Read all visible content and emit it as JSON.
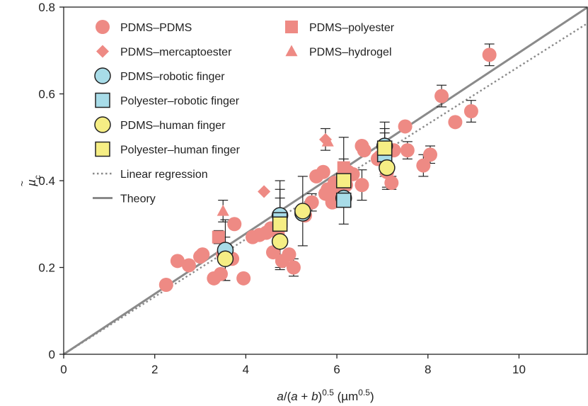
{
  "chart_data": {
    "type": "scatter",
    "xlabel_parts": [
      "a",
      "/(",
      "a",
      " + ",
      "b",
      ")",
      "0.5",
      " (µm",
      "0.5",
      ")"
    ],
    "ylabel_parts": [
      "µ",
      "c"
    ],
    "xlim": [
      0,
      11.5
    ],
    "ylim": [
      0,
      0.8
    ],
    "xticks": [
      "0",
      "2",
      "4",
      "6",
      "8",
      "10"
    ],
    "yticks": [
      "0",
      "0.2",
      "0.4",
      "0.6",
      "0.8"
    ],
    "xtick_values": [
      0,
      2,
      4,
      6,
      8,
      10
    ],
    "ytick_values": [
      0,
      0.2,
      0.4,
      0.6,
      0.8
    ],
    "colors": {
      "red": "#ee8a84",
      "blue": "#a8dce8",
      "yellow": "#f6ee84",
      "line": "#8a8a8a"
    },
    "series": [
      {
        "name": "PDMS–PDMS",
        "marker": "circle",
        "color": "red",
        "points": [
          [
            2.25,
            0.16
          ],
          [
            2.5,
            0.215
          ],
          [
            2.75,
            0.205
          ],
          [
            3.0,
            0.225
          ],
          [
            3.05,
            0.23
          ],
          [
            3.3,
            0.175
          ],
          [
            3.45,
            0.185
          ],
          [
            3.5,
            0.23
          ],
          [
            3.55,
            0.24
          ],
          [
            3.7,
            0.22
          ],
          [
            3.75,
            0.3
          ],
          [
            3.95,
            0.175
          ],
          [
            4.15,
            0.27
          ],
          [
            4.3,
            0.275
          ],
          [
            4.45,
            0.28
          ],
          [
            4.55,
            0.29
          ],
          [
            4.6,
            0.235
          ],
          [
            4.7,
            0.28
          ],
          [
            4.75,
            0.26
          ],
          [
            4.8,
            0.215
          ],
          [
            4.95,
            0.23
          ],
          [
            5.05,
            0.2
          ],
          [
            5.25,
            0.33
          ],
          [
            5.3,
            0.32
          ],
          [
            5.45,
            0.35
          ],
          [
            5.55,
            0.41
          ],
          [
            5.7,
            0.42
          ],
          [
            5.75,
            0.37
          ],
          [
            5.8,
            0.38
          ],
          [
            5.85,
            0.365
          ],
          [
            5.9,
            0.35
          ],
          [
            5.95,
            0.395
          ],
          [
            6.05,
            0.37
          ],
          [
            6.1,
            0.38
          ],
          [
            6.2,
            0.39
          ],
          [
            6.25,
            0.42
          ],
          [
            6.35,
            0.415
          ],
          [
            6.55,
            0.39
          ],
          [
            6.55,
            0.48
          ],
          [
            6.6,
            0.47
          ],
          [
            6.9,
            0.45
          ],
          [
            6.95,
            0.455
          ],
          [
            7.05,
            0.46
          ],
          [
            7.1,
            0.42
          ],
          [
            7.2,
            0.395
          ],
          [
            7.25,
            0.47
          ],
          [
            7.5,
            0.525
          ],
          [
            7.55,
            0.47
          ],
          [
            7.9,
            0.435
          ],
          [
            8.05,
            0.46
          ],
          [
            8.3,
            0.595
          ],
          [
            8.6,
            0.535
          ],
          [
            8.95,
            0.56
          ],
          [
            9.35,
            0.69
          ]
        ],
        "error_bars": [
          [
            7.1,
            0.395,
            0.015
          ],
          [
            7.2,
            0.395,
            0.015
          ],
          [
            8.3,
            0.595,
            0.025
          ],
          [
            8.95,
            0.56,
            0.025
          ],
          [
            9.35,
            0.69,
            0.025
          ],
          [
            6.55,
            0.39,
            0.035
          ],
          [
            7.55,
            0.47,
            0.02
          ],
          [
            8.05,
            0.46,
            0.02
          ],
          [
            7.9,
            0.435,
            0.025
          ],
          [
            5.05,
            0.2,
            0.02
          ],
          [
            5.45,
            0.35,
            0.02
          ]
        ]
      },
      {
        "name": "PDMS–polyester",
        "marker": "square",
        "color": "red",
        "points": [
          [
            3.4,
            0.27
          ],
          [
            5.85,
            0.375
          ],
          [
            6.15,
            0.43
          ]
        ],
        "error_bars": [
          [
            3.4,
            0.27,
            0.015
          ],
          [
            6.15,
            0.43,
            0.02
          ]
        ]
      },
      {
        "name": "PDMS–mercaptoester",
        "marker": "diamond",
        "color": "red",
        "points": [
          [
            4.4,
            0.375
          ],
          [
            5.75,
            0.495
          ]
        ],
        "error_bars": [
          [
            5.75,
            0.495,
            0.025
          ]
        ]
      },
      {
        "name": "PDMS–hydrogel",
        "marker": "triangle",
        "color": "red",
        "points": [
          [
            3.5,
            0.33
          ],
          [
            5.8,
            0.49
          ]
        ],
        "error_bars": [
          [
            3.5,
            0.33,
            0.025
          ]
        ]
      },
      {
        "name": "PDMS–robotic finger",
        "marker": "circle",
        "color": "blue",
        "points": [
          [
            3.55,
            0.24
          ],
          [
            4.75,
            0.32
          ],
          [
            5.25,
            0.325
          ],
          [
            6.15,
            0.36
          ],
          [
            7.05,
            0.48
          ]
        ],
        "error_bars": [
          [
            3.55,
            0.24,
            0.07
          ],
          [
            4.75,
            0.32,
            0.06
          ],
          [
            6.15,
            0.36,
            0.02
          ],
          [
            7.05,
            0.48,
            0.04
          ]
        ]
      },
      {
        "name": "Polyester–robotic finger",
        "marker": "square",
        "color": "blue",
        "points": [
          [
            4.75,
            0.31
          ],
          [
            6.15,
            0.355
          ],
          [
            7.05,
            0.46
          ]
        ],
        "error_bars": [
          [
            4.75,
            0.31,
            0.05
          ],
          [
            7.05,
            0.46,
            0.05
          ]
        ]
      },
      {
        "name": "PDMS–human finger",
        "marker": "circle",
        "color": "yellow",
        "points": [
          [
            3.55,
            0.22
          ],
          [
            4.75,
            0.26
          ],
          [
            5.25,
            0.33
          ],
          [
            7.1,
            0.43
          ]
        ],
        "error_bars": [
          [
            3.55,
            0.22,
            0.05
          ],
          [
            4.75,
            0.26,
            0.065
          ],
          [
            5.25,
            0.33,
            0.08
          ],
          [
            7.1,
            0.43,
            0.045
          ]
        ]
      },
      {
        "name": "Polyester–human finger",
        "marker": "square",
        "color": "yellow",
        "points": [
          [
            4.75,
            0.3
          ],
          [
            6.15,
            0.4
          ],
          [
            7.05,
            0.475
          ]
        ],
        "error_bars": [
          [
            4.75,
            0.3,
            0.1
          ],
          [
            6.15,
            0.4,
            0.1
          ],
          [
            7.05,
            0.475,
            0.06
          ]
        ]
      }
    ],
    "lines": [
      {
        "name": "Linear regression",
        "style": "dotted",
        "slope": 0.0663
      },
      {
        "name": "Theory",
        "style": "solid",
        "slope": 0.0695
      }
    ],
    "legend_left": [
      "PDMS–PDMS",
      "PDMS–mercaptoester",
      "PDMS–robotic finger",
      "Polyester–robotic finger",
      "PDMS–human finger",
      "Polyester–human finger",
      "Linear regression",
      "Theory"
    ],
    "legend_right": [
      "PDMS–polyester",
      "PDMS–hydrogel"
    ],
    "legend_placement": "top-left",
    "grid": false
  }
}
